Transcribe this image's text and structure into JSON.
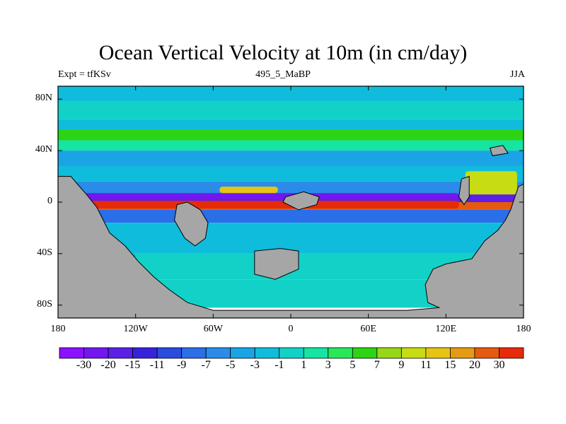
{
  "chart_data": {
    "type": "heatmap",
    "title": "Ocean Vertical Velocity at 10m (in cm/day)",
    "left_string": "Expt = tfKSv",
    "center_string": "495_5_MaBP",
    "right_string": "JJA",
    "xlim": [
      -180,
      180
    ],
    "ylim": [
      -90,
      90
    ],
    "x_ticks": [
      {
        "value": -180,
        "label": "180"
      },
      {
        "value": -120,
        "label": "120W"
      },
      {
        "value": -60,
        "label": "60W"
      },
      {
        "value": 0,
        "label": "0"
      },
      {
        "value": 60,
        "label": "60E"
      },
      {
        "value": 120,
        "label": "120E"
      },
      {
        "value": 180,
        "label": "180"
      }
    ],
    "y_ticks": [
      {
        "value": 80,
        "label": "80N"
      },
      {
        "value": 40,
        "label": "40N"
      },
      {
        "value": 0,
        "label": "0"
      },
      {
        "value": -40,
        "label": "40S"
      },
      {
        "value": -80,
        "label": "80S"
      }
    ],
    "colorbar": {
      "levels": [
        "-30",
        "-20",
        "-15",
        "-11",
        "-9",
        "-7",
        "-5",
        "-3",
        "-1",
        "1",
        "3",
        "5",
        "7",
        "9",
        "11",
        "15",
        "20",
        "30"
      ],
      "colors": [
        "#8a12ff",
        "#7217f0",
        "#5a20e6",
        "#3722dc",
        "#2a4ae0",
        "#2a6ee8",
        "#2a8ce8",
        "#1aa4e6",
        "#10bcdc",
        "#12d2c8",
        "#16e4a2",
        "#28e85a",
        "#2cd414",
        "#96d818",
        "#c8dc14",
        "#e6c414",
        "#e69a14",
        "#e65a10",
        "#e62a0a"
      ]
    },
    "land_color": "#a6a6a6",
    "bands": [
      {
        "lat": [
          90,
          78
        ],
        "value": -2
      },
      {
        "lat": [
          78,
          64
        ],
        "value": 0
      },
      {
        "lat": [
          64,
          56
        ],
        "value": -2
      },
      {
        "lat": [
          56,
          48
        ],
        "value": 6
      },
      {
        "lat": [
          48,
          40
        ],
        "value": 2
      },
      {
        "lat": [
          40,
          28
        ],
        "value": -4
      },
      {
        "lat": [
          28,
          16
        ],
        "value": -2
      },
      {
        "lat": [
          16,
          6
        ],
        "value": -6
      },
      {
        "lat": [
          6,
          0
        ],
        "value": -20
      },
      {
        "lat": [
          0,
          -6
        ],
        "value": 25
      },
      {
        "lat": [
          -6,
          -16
        ],
        "value": -8
      },
      {
        "lat": [
          -16,
          -40
        ],
        "value": -3
      },
      {
        "lat": [
          -40,
          -60
        ],
        "value": -1
      },
      {
        "lat": [
          -60,
          -82
        ],
        "value": 0
      }
    ],
    "features": [
      {
        "lon": [
          -160,
          130
        ],
        "lat": [
          1,
          -5
        ],
        "value": 30
      },
      {
        "lon": [
          -160,
          130
        ],
        "lat": [
          7,
          2
        ],
        "value": -25
      },
      {
        "lon": [
          -55,
          -10
        ],
        "lat": [
          12,
          7
        ],
        "value": 13
      },
      {
        "lon": [
          -160,
          -120
        ],
        "lat": [
          -40,
          -70
        ],
        "value": -5
      },
      {
        "lon": [
          -178,
          178
        ],
        "lat": [
          56,
          48
        ],
        "value": 5
      },
      {
        "lon": [
          135,
          175
        ],
        "lat": [
          24,
          6
        ],
        "value": 10
      }
    ],
    "landmasses": [
      [
        [
          -180,
          20
        ],
        [
          -170,
          20
        ],
        [
          -165,
          14
        ],
        [
          -158,
          6
        ],
        [
          -150,
          -4
        ],
        [
          -145,
          -14
        ],
        [
          -140,
          -24
        ],
        [
          -128,
          -34
        ],
        [
          -118,
          -46
        ],
        [
          -106,
          -58
        ],
        [
          -94,
          -68
        ],
        [
          -80,
          -78
        ],
        [
          -60,
          -84
        ],
        [
          -30,
          -84
        ],
        [
          0,
          -84
        ],
        [
          30,
          -84
        ],
        [
          60,
          -84
        ],
        [
          90,
          -84
        ],
        [
          115,
          -82
        ],
        [
          106,
          -78
        ],
        [
          104,
          -64
        ],
        [
          110,
          -52
        ],
        [
          120,
          -48
        ],
        [
          140,
          -44
        ],
        [
          150,
          -30
        ],
        [
          160,
          -22
        ],
        [
          166,
          -14
        ],
        [
          170,
          -6
        ],
        [
          174,
          6
        ],
        [
          176,
          12
        ],
        [
          180,
          14
        ],
        [
          180,
          -90
        ],
        [
          -180,
          -90
        ]
      ],
      [
        [
          -88,
          -2
        ],
        [
          -80,
          0
        ],
        [
          -70,
          -6
        ],
        [
          -64,
          -16
        ],
        [
          -66,
          -28
        ],
        [
          -74,
          -34
        ],
        [
          -82,
          -28
        ],
        [
          -90,
          -14
        ]
      ],
      [
        [
          -28,
          -38
        ],
        [
          -8,
          -36
        ],
        [
          6,
          -38
        ],
        [
          6,
          -52
        ],
        [
          -12,
          -60
        ],
        [
          -28,
          -56
        ]
      ],
      [
        [
          -4,
          4
        ],
        [
          10,
          8
        ],
        [
          22,
          4
        ],
        [
          20,
          -2
        ],
        [
          6,
          -6
        ],
        [
          -6,
          0
        ]
      ],
      [
        [
          132,
          18
        ],
        [
          138,
          20
        ],
        [
          138,
          4
        ],
        [
          134,
          -2
        ],
        [
          130,
          4
        ]
      ],
      [
        [
          154,
          42
        ],
        [
          164,
          44
        ],
        [
          168,
          38
        ],
        [
          156,
          36
        ]
      ]
    ]
  }
}
